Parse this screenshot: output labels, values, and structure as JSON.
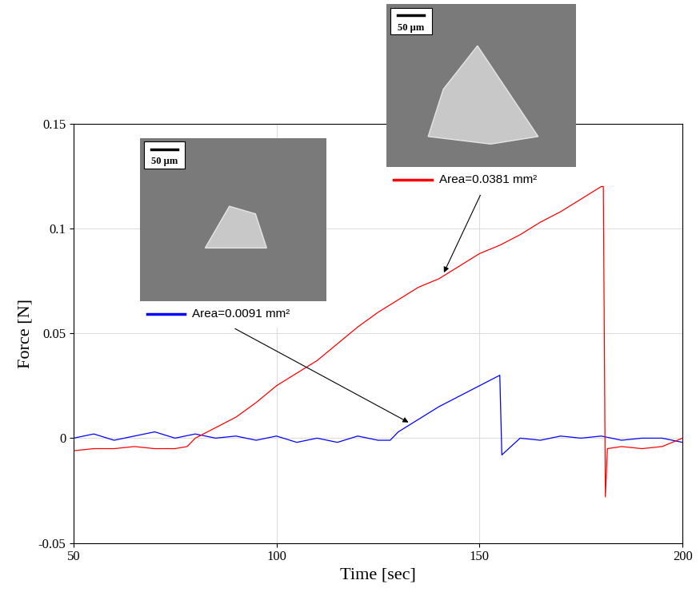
{
  "chart_data": {
    "type": "line",
    "x_label": "Time [sec]",
    "y_label": "Force [N]",
    "xlim": [
      50,
      200
    ],
    "xticks": [
      50,
      100,
      150,
      200
    ],
    "ylim": [
      -0.05,
      0.15
    ],
    "yticks": [
      -0.05,
      0,
      0.05,
      0.1,
      0.15
    ],
    "grid": true,
    "series": [
      {
        "name": "Area=0.0091 mm²",
        "color": "#0000ff",
        "x": [
          50,
          55,
          60,
          65,
          70,
          75,
          80,
          85,
          90,
          95,
          100,
          105,
          110,
          115,
          120,
          125,
          128,
          130,
          135,
          140,
          145,
          150,
          155,
          155.5,
          160,
          165,
          170,
          175,
          180,
          185,
          190,
          195,
          200
        ],
        "values": [
          0.0,
          0.002,
          -0.001,
          0.001,
          0.003,
          0.0,
          0.002,
          0.0,
          0.001,
          -0.001,
          0.001,
          -0.002,
          0.0,
          -0.002,
          0.001,
          -0.001,
          -0.001,
          0.003,
          0.009,
          0.015,
          0.02,
          0.025,
          0.03,
          -0.008,
          0.0,
          -0.001,
          0.001,
          0.0,
          0.001,
          -0.001,
          0.0,
          0.0,
          -0.002
        ]
      },
      {
        "name": "Area=0.0381 mm²",
        "color": "#ff0000",
        "x": [
          50,
          55,
          60,
          65,
          70,
          75,
          78,
          80,
          85,
          90,
          95,
          100,
          105,
          110,
          115,
          120,
          125,
          130,
          135,
          140,
          145,
          150,
          155,
          160,
          165,
          170,
          175,
          180,
          180.5,
          181,
          181.5,
          185,
          190,
          195,
          200
        ],
        "values": [
          -0.006,
          -0.005,
          -0.005,
          -0.004,
          -0.005,
          -0.005,
          -0.004,
          0.0,
          0.005,
          0.01,
          0.017,
          0.025,
          0.031,
          0.037,
          0.045,
          0.053,
          0.06,
          0.066,
          0.072,
          0.076,
          0.082,
          0.088,
          0.092,
          0.097,
          0.103,
          0.108,
          0.114,
          0.12,
          0.12,
          -0.028,
          -0.005,
          -0.004,
          -0.005,
          -0.004,
          0.0
        ]
      }
    ],
    "annotations": [
      {
        "series": "Area=0.0091 mm²",
        "scale_bar": "50 µm",
        "arrow_to": [
          133,
          0.007
        ]
      },
      {
        "series": "Area=0.0381 mm²",
        "scale_bar": "50 µm",
        "arrow_to": [
          141,
          0.078
        ]
      }
    ]
  }
}
